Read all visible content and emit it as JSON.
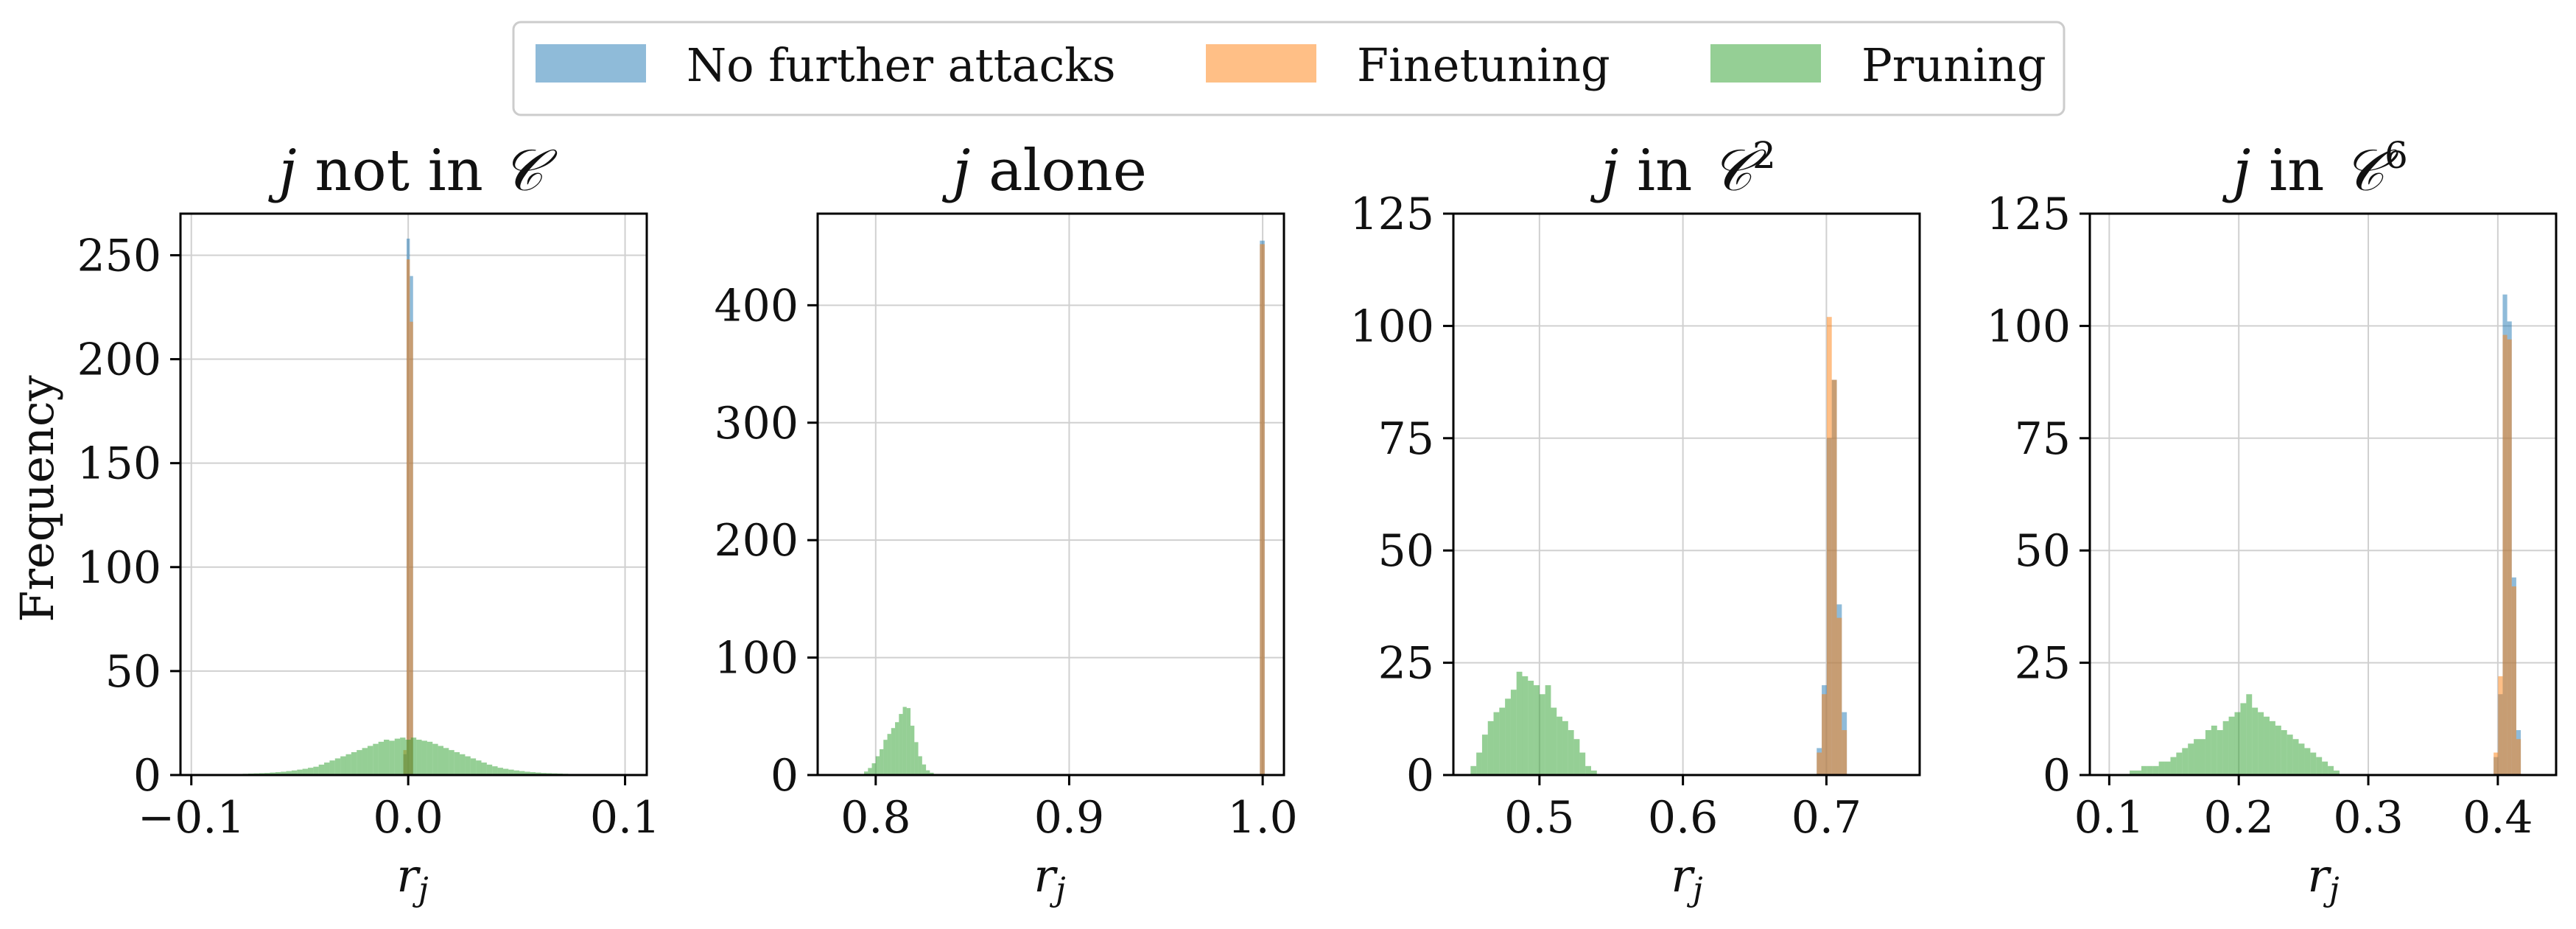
{
  "legend": [
    {
      "label": "No further attacks",
      "color": "#1f77b4"
    },
    {
      "label": "Finetuning",
      "color": "#ff7f0e"
    },
    {
      "label": "Pruning",
      "color": "#2ca02c"
    }
  ],
  "bar_opacity": 0.5,
  "ylabel_common": "Frequency",
  "chart_data": [
    {
      "type": "bar",
      "title": "j not in C",
      "xlabel": "r_j",
      "ylabel": "Frequency",
      "xlim": [
        -0.105,
        0.11
      ],
      "ylim": [
        0,
        270
      ],
      "xticks": [
        -0.1,
        0.0,
        0.1
      ],
      "xticklabels": [
        "−0.1",
        "0.0",
        "0.1"
      ],
      "yticks": [
        0,
        50,
        100,
        150,
        200,
        250
      ],
      "yticklabels": [
        "0",
        "50",
        "100",
        "150",
        "200",
        "250"
      ],
      "series": [
        {
          "name": "No further attacks",
          "bin_width": 0.0015,
          "x": [
            -0.0015,
            0.0,
            0.0015
          ],
          "values": [
            10,
            258,
            240
          ]
        },
        {
          "name": "Finetuning",
          "bin_width": 0.0015,
          "x": [
            -0.0015,
            0.0,
            0.0015
          ],
          "values": [
            12,
            248,
            218
          ]
        },
        {
          "name": "Pruning",
          "bin_width": 0.0025,
          "x": [
            -0.09,
            -0.0875,
            -0.085,
            -0.0825,
            -0.08,
            -0.0775,
            -0.075,
            -0.0725,
            -0.07,
            -0.0675,
            -0.065,
            -0.0625,
            -0.06,
            -0.0575,
            -0.055,
            -0.0525,
            -0.05,
            -0.0475,
            -0.045,
            -0.0425,
            -0.04,
            -0.0375,
            -0.035,
            -0.0325,
            -0.03,
            -0.0275,
            -0.025,
            -0.0225,
            -0.02,
            -0.0175,
            -0.015,
            -0.0125,
            -0.01,
            -0.0075,
            -0.005,
            -0.0025,
            0.0,
            0.0025,
            0.005,
            0.0075,
            0.01,
            0.0125,
            0.015,
            0.0175,
            0.02,
            0.0225,
            0.025,
            0.0275,
            0.03,
            0.0325,
            0.035,
            0.0375,
            0.04,
            0.0425,
            0.045,
            0.0475,
            0.05,
            0.0525,
            0.055,
            0.0575,
            0.06,
            0.0625,
            0.065,
            0.0675,
            0.07,
            0.0725,
            0.075,
            0.0775,
            0.08,
            0.0825,
            0.085,
            0.0875,
            0.09
          ],
          "values": [
            0.2,
            0.2,
            0.3,
            0.3,
            0.4,
            0.5,
            0.6,
            0.7,
            0.8,
            0.9,
            1.0,
            1.2,
            1.4,
            1.6,
            1.9,
            2.2,
            2.6,
            3.0,
            3.5,
            4.0,
            5.0,
            6.0,
            7.0,
            8.0,
            9.0,
            10.0,
            11.0,
            12.0,
            13.0,
            14.0,
            15.0,
            16.0,
            17.0,
            16.5,
            17.5,
            18.0,
            17.0,
            18.0,
            17.0,
            16.5,
            16.0,
            15.0,
            14.0,
            13.0,
            12.0,
            11.0,
            10.0,
            9.0,
            8.0,
            7.0,
            6.0,
            5.0,
            4.2,
            3.5,
            3.0,
            2.6,
            2.2,
            1.9,
            1.6,
            1.4,
            1.2,
            1.0,
            0.9,
            0.8,
            0.7,
            0.6,
            0.5,
            0.4,
            0.3,
            0.3,
            0.2,
            0.2,
            0.2
          ]
        }
      ]
    },
    {
      "type": "bar",
      "title": "j alone",
      "xlabel": "r_j",
      "ylabel": "",
      "xlim": [
        0.77,
        1.011
      ],
      "ylim": [
        0,
        478
      ],
      "xticks": [
        0.8,
        0.9,
        1.0
      ],
      "xticklabels": [
        "0.8",
        "0.9",
        "1.0"
      ],
      "yticks": [
        0,
        100,
        200,
        300,
        400
      ],
      "yticklabels": [
        "0",
        "100",
        "200",
        "300",
        "400"
      ],
      "series": [
        {
          "name": "No further attacks",
          "bin_width": 0.0025,
          "x": [
            0.9998
          ],
          "values": [
            455
          ]
        },
        {
          "name": "Finetuning",
          "bin_width": 0.0025,
          "x": [
            0.9998
          ],
          "values": [
            452
          ]
        },
        {
          "name": "Pruning",
          "bin_width": 0.002,
          "x": [
            0.795,
            0.797,
            0.799,
            0.801,
            0.803,
            0.805,
            0.807,
            0.809,
            0.811,
            0.813,
            0.815,
            0.817,
            0.819,
            0.821,
            0.823,
            0.825,
            0.827,
            0.829
          ],
          "values": [
            3,
            6,
            10,
            16,
            22,
            30,
            35,
            40,
            45,
            52,
            58,
            57,
            42,
            28,
            16,
            9,
            4,
            2
          ]
        }
      ]
    },
    {
      "type": "bar",
      "title": "j in C^2",
      "xlabel": "r_j",
      "ylabel": "",
      "xlim": [
        0.44,
        0.765
      ],
      "ylim": [
        0,
        125
      ],
      "xticks": [
        0.5,
        0.6,
        0.7
      ],
      "xticklabels": [
        "0.5",
        "0.6",
        "0.7"
      ],
      "yticks": [
        0,
        25,
        50,
        75,
        100,
        125
      ],
      "yticklabels": [
        "0",
        "25",
        "50",
        "75",
        "100",
        "125"
      ],
      "series": [
        {
          "name": "No further attacks",
          "bin_width": 0.0035,
          "x": [
            0.695,
            0.6985,
            0.702,
            0.7055,
            0.709,
            0.7125
          ],
          "values": [
            6,
            20,
            75,
            88,
            38,
            14
          ]
        },
        {
          "name": "Finetuning",
          "bin_width": 0.0035,
          "x": [
            0.695,
            0.6985,
            0.702,
            0.7055,
            0.709,
            0.7125
          ],
          "values": [
            5,
            18,
            102,
            88,
            35,
            10
          ]
        },
        {
          "name": "Pruning",
          "bin_width": 0.004,
          "x": [
            0.454,
            0.458,
            0.462,
            0.466,
            0.47,
            0.474,
            0.478,
            0.482,
            0.486,
            0.49,
            0.494,
            0.498,
            0.502,
            0.506,
            0.51,
            0.514,
            0.518,
            0.522,
            0.526,
            0.53,
            0.534,
            0.538
          ],
          "values": [
            2,
            5,
            9,
            12,
            14,
            15,
            17,
            19,
            23,
            22,
            21,
            20,
            18,
            20,
            15,
            13,
            12,
            10,
            8,
            5,
            2,
            1
          ]
        }
      ]
    },
    {
      "type": "bar",
      "title": "j in C^6",
      "xlabel": "r_j",
      "ylabel": "",
      "xlim": [
        0.085,
        0.445
      ],
      "ylim": [
        0,
        125
      ],
      "xticks": [
        0.1,
        0.2,
        0.3,
        0.4
      ],
      "xticklabels": [
        "0.1",
        "0.2",
        "0.3",
        "0.4"
      ],
      "yticks": [
        0,
        25,
        50,
        75,
        100,
        125
      ],
      "yticklabels": [
        "0",
        "25",
        "50",
        "75",
        "100",
        "125"
      ],
      "series": [
        {
          "name": "No further attacks",
          "bin_width": 0.0035,
          "x": [
            0.3985,
            0.402,
            0.4055,
            0.409,
            0.4125,
            0.416
          ],
          "values": [
            4,
            18,
            107,
            101,
            44,
            10
          ]
        },
        {
          "name": "Finetuning",
          "bin_width": 0.0035,
          "x": [
            0.3985,
            0.402,
            0.4055,
            0.409,
            0.4125,
            0.416
          ],
          "values": [
            5,
            22,
            98,
            97,
            42,
            8
          ]
        },
        {
          "name": "Pruning",
          "bin_width": 0.0045,
          "x": [
            0.118,
            0.1225,
            0.127,
            0.1315,
            0.136,
            0.1405,
            0.145,
            0.1495,
            0.154,
            0.1585,
            0.163,
            0.1675,
            0.172,
            0.1765,
            0.181,
            0.1855,
            0.19,
            0.1945,
            0.199,
            0.2035,
            0.208,
            0.2125,
            0.217,
            0.2215,
            0.226,
            0.2305,
            0.235,
            0.2395,
            0.244,
            0.2485,
            0.253,
            0.2575,
            0.262,
            0.2665,
            0.271,
            0.2755
          ],
          "values": [
            1,
            1,
            2,
            2,
            2,
            3,
            3,
            4,
            5,
            6,
            7,
            8,
            8,
            10,
            11,
            10,
            12,
            13,
            14,
            16,
            18,
            15,
            14,
            13,
            12,
            11,
            10,
            9,
            8,
            7,
            6,
            5,
            4,
            3,
            2,
            1
          ]
        }
      ]
    }
  ]
}
